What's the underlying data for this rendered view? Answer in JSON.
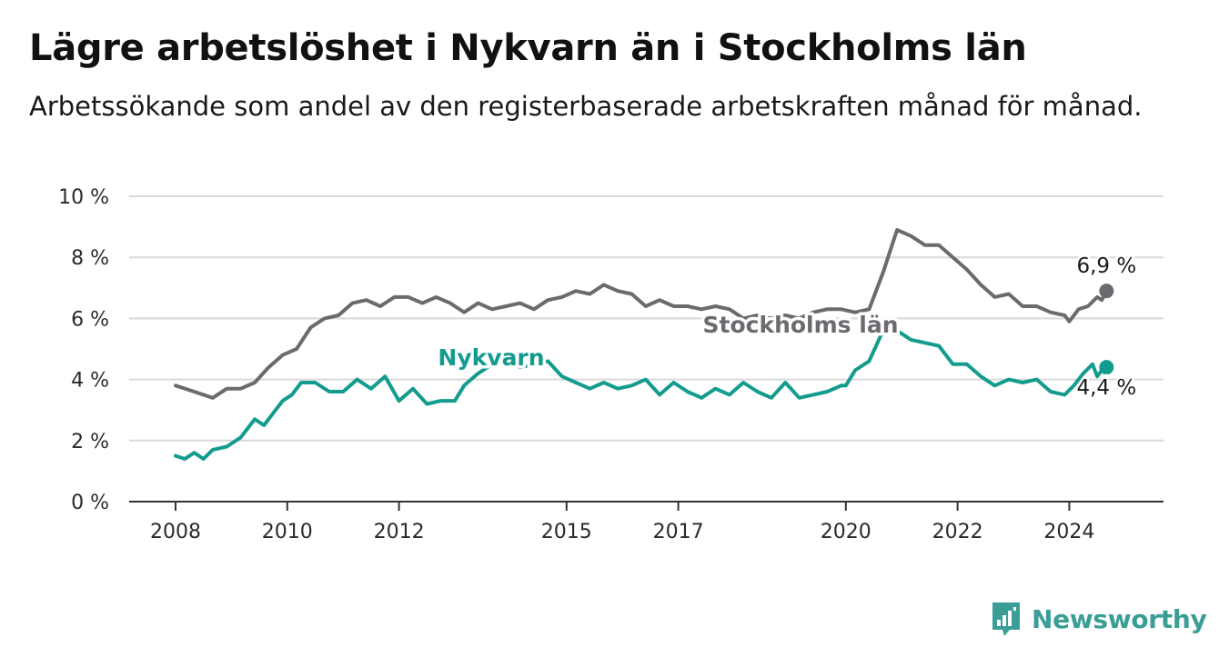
{
  "brand": {
    "name": "Newsworthy",
    "color": "#3a9e96",
    "icon": "newsworthy-logo-icon"
  },
  "chart_data": {
    "type": "line",
    "title": "Lägre arbetslöshet i Nykvarn än i Stockholms län",
    "subtitle": "Arbetssökande som andel av den registerbaserade arbetskraften månad för månad.",
    "xlabel": "",
    "ylabel": "",
    "x_ticks": [
      "2008",
      "2010",
      "2012",
      "2015",
      "2017",
      "2020",
      "2022",
      "2024"
    ],
    "y_ticks": [
      "0 %",
      "2 %",
      "4 %",
      "6 %",
      "8 %",
      "10 %"
    ],
    "xlim": [
      "2008-01",
      "2024-09"
    ],
    "ylim": [
      0,
      10
    ],
    "grid": true,
    "legend": "inline labels on the lines",
    "series": [
      {
        "name": "Stockholms län",
        "color": "#6b6a6f",
        "end_label": "6,9 %",
        "points": [
          [
            "2008-01",
            3.8
          ],
          [
            "2008-05",
            3.6
          ],
          [
            "2008-09",
            3.4
          ],
          [
            "2008-12",
            3.7
          ],
          [
            "2009-03",
            3.7
          ],
          [
            "2009-06",
            3.9
          ],
          [
            "2009-09",
            4.4
          ],
          [
            "2009-12",
            4.8
          ],
          [
            "2010-03",
            5.0
          ],
          [
            "2010-06",
            5.7
          ],
          [
            "2010-09",
            6.0
          ],
          [
            "2010-12",
            6.1
          ],
          [
            "2011-03",
            6.5
          ],
          [
            "2011-06",
            6.6
          ],
          [
            "2011-09",
            6.4
          ],
          [
            "2011-12",
            6.7
          ],
          [
            "2012-03",
            6.7
          ],
          [
            "2012-06",
            6.5
          ],
          [
            "2012-09",
            6.7
          ],
          [
            "2012-12",
            6.5
          ],
          [
            "2013-03",
            6.2
          ],
          [
            "2013-06",
            6.5
          ],
          [
            "2013-09",
            6.3
          ],
          [
            "2013-12",
            6.4
          ],
          [
            "2014-03",
            6.5
          ],
          [
            "2014-06",
            6.3
          ],
          [
            "2014-09",
            6.6
          ],
          [
            "2014-12",
            6.7
          ],
          [
            "2015-03",
            6.9
          ],
          [
            "2015-06",
            6.8
          ],
          [
            "2015-09",
            7.1
          ],
          [
            "2015-12",
            6.9
          ],
          [
            "2016-03",
            6.8
          ],
          [
            "2016-06",
            6.4
          ],
          [
            "2016-09",
            6.6
          ],
          [
            "2016-12",
            6.4
          ],
          [
            "2017-03",
            6.4
          ],
          [
            "2017-06",
            6.3
          ],
          [
            "2017-09",
            6.4
          ],
          [
            "2017-12",
            6.3
          ],
          [
            "2018-03",
            6.0
          ],
          [
            "2018-06",
            6.1
          ],
          [
            "2018-09",
            6.0
          ],
          [
            "2018-12",
            6.1
          ],
          [
            "2019-03",
            6.0
          ],
          [
            "2019-06",
            6.2
          ],
          [
            "2019-09",
            6.3
          ],
          [
            "2019-12",
            6.3
          ],
          [
            "2020-03",
            6.2
          ],
          [
            "2020-06",
            6.3
          ],
          [
            "2020-09",
            7.5
          ],
          [
            "2020-12",
            8.9
          ],
          [
            "2021-03",
            8.7
          ],
          [
            "2021-06",
            8.4
          ],
          [
            "2021-09",
            8.4
          ],
          [
            "2021-12",
            8.0
          ],
          [
            "2022-03",
            7.6
          ],
          [
            "2022-06",
            7.1
          ],
          [
            "2022-09",
            6.7
          ],
          [
            "2022-12",
            6.8
          ],
          [
            "2023-03",
            6.4
          ],
          [
            "2023-06",
            6.4
          ],
          [
            "2023-09",
            6.2
          ],
          [
            "2023-12",
            6.1
          ],
          [
            "2024-01",
            5.9
          ],
          [
            "2024-03",
            6.3
          ],
          [
            "2024-05",
            6.4
          ],
          [
            "2024-07",
            6.7
          ],
          [
            "2024-08",
            6.6
          ],
          [
            "2024-09",
            6.9
          ]
        ]
      },
      {
        "name": "Nykvarn",
        "color": "#139c8d",
        "end_label": "4,4 %",
        "points": [
          [
            "2008-01",
            1.5
          ],
          [
            "2008-03",
            1.4
          ],
          [
            "2008-05",
            1.6
          ],
          [
            "2008-07",
            1.4
          ],
          [
            "2008-09",
            1.7
          ],
          [
            "2008-12",
            1.8
          ],
          [
            "2009-03",
            2.1
          ],
          [
            "2009-06",
            2.7
          ],
          [
            "2009-08",
            2.5
          ],
          [
            "2009-10",
            2.9
          ],
          [
            "2009-12",
            3.3
          ],
          [
            "2010-02",
            3.5
          ],
          [
            "2010-04",
            3.9
          ],
          [
            "2010-07",
            3.9
          ],
          [
            "2010-10",
            3.6
          ],
          [
            "2011-01",
            3.6
          ],
          [
            "2011-04",
            4.0
          ],
          [
            "2011-07",
            3.7
          ],
          [
            "2011-10",
            4.1
          ],
          [
            "2012-01",
            3.3
          ],
          [
            "2012-04",
            3.7
          ],
          [
            "2012-07",
            3.2
          ],
          [
            "2012-10",
            3.3
          ],
          [
            "2013-01",
            3.3
          ],
          [
            "2013-03",
            3.8
          ],
          [
            "2013-06",
            4.2
          ],
          [
            "2013-09",
            4.5
          ],
          [
            "2013-12",
            4.6
          ],
          [
            "2014-03",
            4.4
          ],
          [
            "2014-06",
            4.5
          ],
          [
            "2014-09",
            4.6
          ],
          [
            "2014-12",
            4.1
          ],
          [
            "2015-03",
            3.9
          ],
          [
            "2015-06",
            3.7
          ],
          [
            "2015-09",
            3.9
          ],
          [
            "2015-12",
            3.7
          ],
          [
            "2016-03",
            3.8
          ],
          [
            "2016-06",
            4.0
          ],
          [
            "2016-09",
            3.5
          ],
          [
            "2016-12",
            3.9
          ],
          [
            "2017-03",
            3.6
          ],
          [
            "2017-06",
            3.4
          ],
          [
            "2017-09",
            3.7
          ],
          [
            "2017-12",
            3.5
          ],
          [
            "2018-03",
            3.9
          ],
          [
            "2018-06",
            3.6
          ],
          [
            "2018-09",
            3.4
          ],
          [
            "2018-12",
            3.9
          ],
          [
            "2019-03",
            3.4
          ],
          [
            "2019-06",
            3.5
          ],
          [
            "2019-09",
            3.6
          ],
          [
            "2019-12",
            3.8
          ],
          [
            "2020-01",
            3.8
          ],
          [
            "2020-03",
            4.3
          ],
          [
            "2020-06",
            4.6
          ],
          [
            "2020-09",
            5.6
          ],
          [
            "2020-12",
            5.6
          ],
          [
            "2021-03",
            5.3
          ],
          [
            "2021-06",
            5.2
          ],
          [
            "2021-09",
            5.1
          ],
          [
            "2021-12",
            4.5
          ],
          [
            "2022-03",
            4.5
          ],
          [
            "2022-06",
            4.1
          ],
          [
            "2022-09",
            3.8
          ],
          [
            "2022-12",
            4.0
          ],
          [
            "2023-03",
            3.9
          ],
          [
            "2023-06",
            4.0
          ],
          [
            "2023-09",
            3.6
          ],
          [
            "2023-12",
            3.5
          ],
          [
            "2024-02",
            3.8
          ],
          [
            "2024-04",
            4.2
          ],
          [
            "2024-06",
            4.5
          ],
          [
            "2024-07",
            4.1
          ],
          [
            "2024-08",
            4.3
          ],
          [
            "2024-09",
            4.4
          ]
        ]
      }
    ]
  }
}
